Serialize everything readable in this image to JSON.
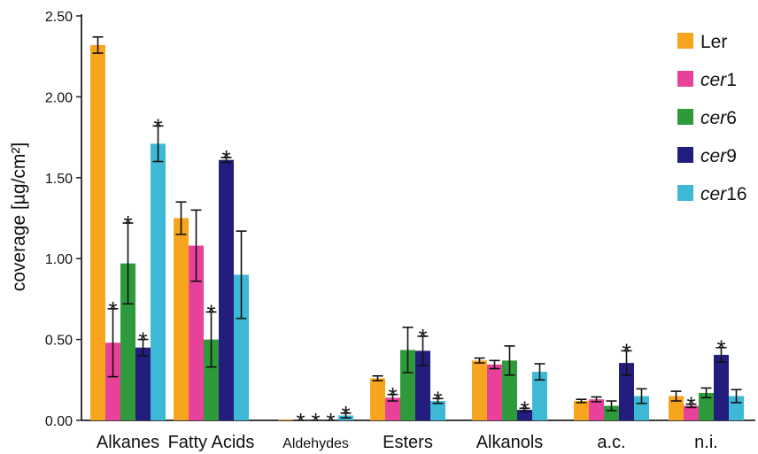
{
  "chart_data": {
    "type": "bar",
    "title": "",
    "xlabel": "",
    "ylabel": "coverage [µg/cm²]",
    "ylim": [
      0,
      2.5
    ],
    "yticks": [
      "0.00",
      "0.50",
      "1.00",
      "1.50",
      "2.00",
      "2.50"
    ],
    "grid": false,
    "legend_position": "top-right",
    "categories": [
      "Alkanes",
      "Fatty Acids",
      "Aldehydes",
      "Esters",
      "Alkanols",
      "a.c.",
      "n.i."
    ],
    "series": [
      {
        "name": "Ler",
        "legend_prefix": "Ler",
        "legend_suffix": "",
        "color": "#F7A51E",
        "values": [
          2.32,
          1.25,
          0.005,
          0.26,
          0.37,
          0.12,
          0.15
        ],
        "errors": [
          0.05,
          0.1,
          0.0,
          0.015,
          0.015,
          0.01,
          0.03
        ],
        "stars": [
          false,
          false,
          false,
          false,
          false,
          false,
          false
        ]
      },
      {
        "name": "cer1",
        "legend_prefix": "cer",
        "legend_suffix": "1",
        "color": "#E8419A",
        "values": [
          0.48,
          1.08,
          0.0,
          0.14,
          0.345,
          0.13,
          0.09
        ],
        "errors": [
          0.21,
          0.22,
          0.0,
          0.02,
          0.025,
          0.015,
          0.01
        ],
        "stars": [
          true,
          false,
          true,
          true,
          false,
          false,
          true
        ]
      },
      {
        "name": "cer6",
        "legend_prefix": "cer",
        "legend_suffix": "6",
        "color": "#2F9A3C",
        "values": [
          0.97,
          0.5,
          0.0,
          0.435,
          0.37,
          0.09,
          0.17
        ],
        "errors": [
          0.25,
          0.17,
          0.0,
          0.14,
          0.09,
          0.03,
          0.03
        ],
        "stars": [
          true,
          true,
          true,
          false,
          false,
          false,
          false
        ]
      },
      {
        "name": "cer9",
        "legend_prefix": "cer",
        "legend_suffix": "9",
        "color": "#231D7E",
        "values": [
          0.45,
          1.61,
          0.0,
          0.43,
          0.065,
          0.355,
          0.405
        ],
        "errors": [
          0.05,
          0.015,
          0.0,
          0.09,
          0.01,
          0.075,
          0.045
        ],
        "stars": [
          true,
          true,
          true,
          true,
          true,
          true,
          true
        ]
      },
      {
        "name": "cer16",
        "legend_prefix": "cer",
        "legend_suffix": "16",
        "color": "#3DB9D6",
        "values": [
          1.71,
          0.9,
          0.03,
          0.12,
          0.3,
          0.15,
          0.15
        ],
        "errors": [
          0.11,
          0.27,
          0.015,
          0.015,
          0.05,
          0.045,
          0.04
        ],
        "stars": [
          true,
          false,
          true,
          true,
          false,
          false,
          false
        ]
      }
    ]
  }
}
